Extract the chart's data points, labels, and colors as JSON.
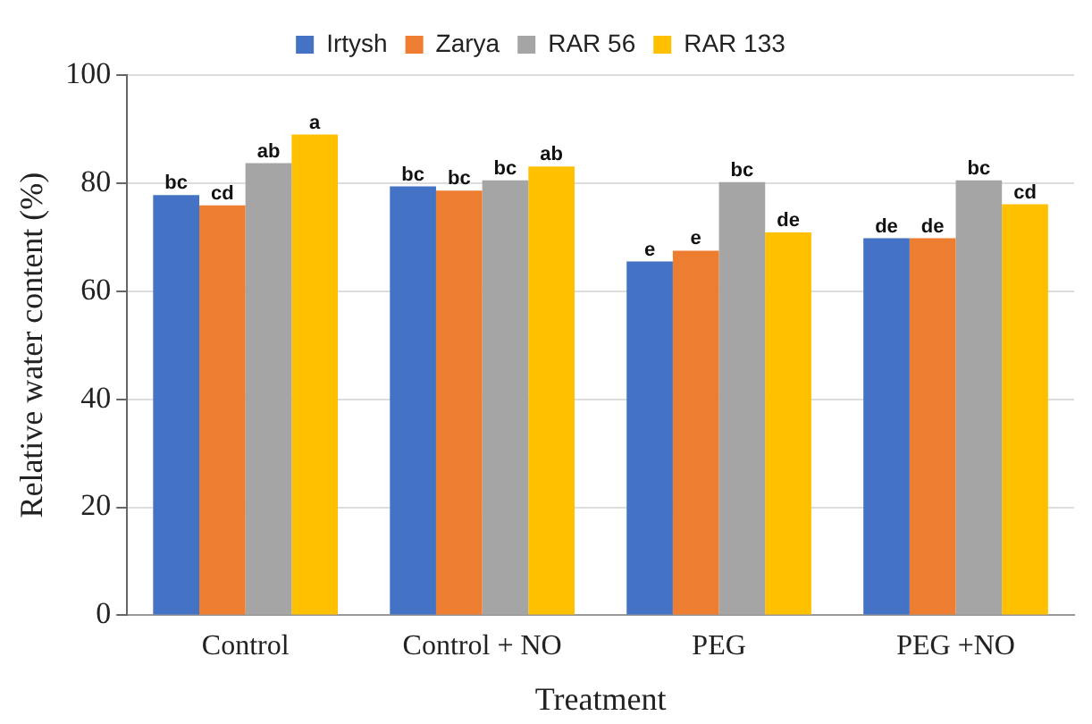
{
  "chart_data": {
    "type": "bar",
    "xlabel": "Treatment",
    "ylabel": "Relative water content (%)",
    "categories": [
      "Control",
      "Control + NO",
      "PEG",
      "PEG +NO"
    ],
    "series": [
      {
        "name": "Irtysh",
        "color": "#4472c4",
        "values": [
          77.8,
          79.4,
          65.5,
          69.8
        ],
        "value_labels": [
          "bc",
          "bc",
          "e",
          "de"
        ]
      },
      {
        "name": "Zarya",
        "color": "#ed7d31",
        "values": [
          75.9,
          78.6,
          67.5,
          69.8
        ],
        "value_labels": [
          "cd",
          "bc",
          "e",
          "de"
        ]
      },
      {
        "name": "RAR 56",
        "color": "#a5a5a5",
        "values": [
          83.7,
          80.5,
          80.2,
          80.5
        ],
        "value_labels": [
          "ab",
          "bc",
          "bc",
          "bc"
        ]
      },
      {
        "name": "RAR 133",
        "color": "#ffc000",
        "values": [
          89,
          83.1,
          70.9,
          76.1
        ],
        "value_labels": [
          "a",
          "ab",
          "de",
          "cd"
        ]
      }
    ],
    "ylim": [
      0,
      100
    ],
    "yticks": [
      0,
      20,
      40,
      60,
      80,
      100
    ],
    "grid": "y",
    "legend": "top"
  }
}
